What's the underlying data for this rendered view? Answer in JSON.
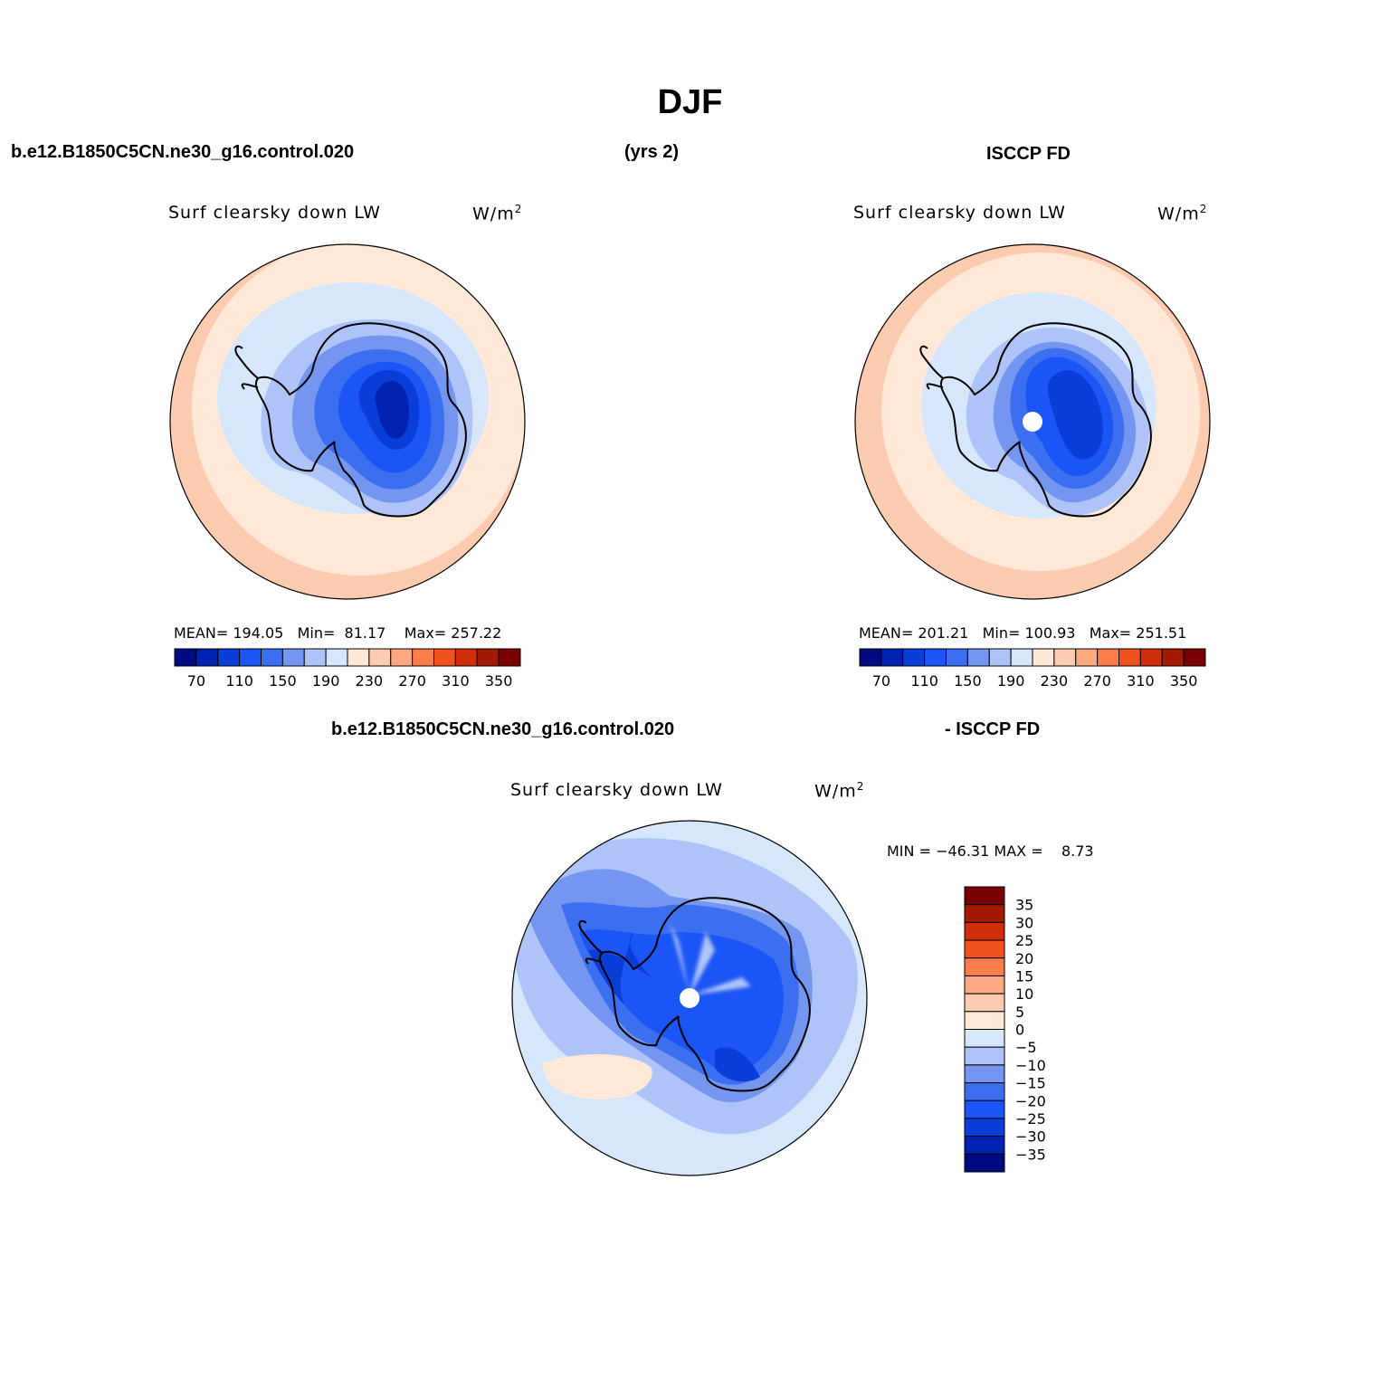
{
  "figure": {
    "title": "DJF",
    "header_left": "b.e12.B1850C5CN.ne30_g16.control.020",
    "header_mid": "(yrs 2)",
    "header_right": "ISCCP FD",
    "diff_header_left": "b.e12.B1850C5CN.ne30_g16.control.020",
    "diff_header_right": "- ISCCP FD"
  },
  "colors": {
    "abs_scale": [
      "#000a80",
      "#0022b0",
      "#0a3ed8",
      "#1c55f5",
      "#3c6ff0",
      "#7596f0",
      "#aec4f8",
      "#d6e7fc",
      "#ffe8d8",
      "#fccbb0",
      "#fca880",
      "#fb7d4a",
      "#f0501c",
      "#d02e08",
      "#a31a04",
      "#780000"
    ],
    "diff_scale": [
      "#000a80",
      "#0022b0",
      "#0a3ed8",
      "#1c55f5",
      "#3c6ff0",
      "#7596f0",
      "#aec4f8",
      "#d6e7fc",
      "#ffe8d8",
      "#fccbb0",
      "#fca880",
      "#fb7d4a",
      "#f0501c",
      "#d02e08",
      "#a31a04",
      "#780000"
    ],
    "land_outline": "#000000"
  },
  "chart_data": [
    {
      "type": "heatmap",
      "projection": "south-polar-stereographic",
      "title": "Surf clearsky down LW",
      "units_base": "W/m",
      "units_exp": "2",
      "stats": {
        "mean_label": "MEAN=",
        "mean": "194.05",
        "min_label": "Min=",
        "min": "81.17",
        "max_label": "Max=",
        "max": "257.22"
      },
      "colorbar_levels": [
        70,
        90,
        110,
        130,
        150,
        170,
        190,
        210,
        230,
        250,
        270,
        290,
        310,
        330,
        350
      ],
      "colorbar_tick_labels": [
        "70",
        "110",
        "150",
        "190",
        "230",
        "270",
        "310",
        "350"
      ],
      "pole_missing": false
    },
    {
      "type": "heatmap",
      "projection": "south-polar-stereographic",
      "title": "Surf clearsky down LW",
      "units_base": "W/m",
      "units_exp": "2",
      "stats": {
        "mean_label": "MEAN=",
        "mean": "201.21",
        "min_label": "Min=",
        "min": "100.93",
        "max_label": "Max=",
        "max": "251.51"
      },
      "colorbar_levels": [
        70,
        90,
        110,
        130,
        150,
        170,
        190,
        210,
        230,
        250,
        270,
        290,
        310,
        330,
        350
      ],
      "colorbar_tick_labels": [
        "70",
        "110",
        "150",
        "190",
        "230",
        "270",
        "310",
        "350"
      ],
      "pole_missing": true
    },
    {
      "type": "heatmap",
      "projection": "south-polar-stereographic",
      "title": "Surf clearsky down LW",
      "units_base": "W/m",
      "units_exp": "2",
      "stats": {
        "min_label": "MIN =",
        "min": "−46.31",
        "max_label": "MAX =",
        "max": "8.73"
      },
      "colorbar_levels": [
        35,
        30,
        25,
        20,
        15,
        10,
        5,
        0,
        -5,
        -10,
        -15,
        -20,
        -25,
        -30,
        -35
      ],
      "colorbar_tick_labels": [
        "35",
        "30",
        "25",
        "20",
        "15",
        "10",
        "5",
        "0",
        "−5",
        "−10",
        "−15",
        "−20",
        "−25",
        "−30",
        "−35"
      ],
      "pole_missing": true
    }
  ]
}
